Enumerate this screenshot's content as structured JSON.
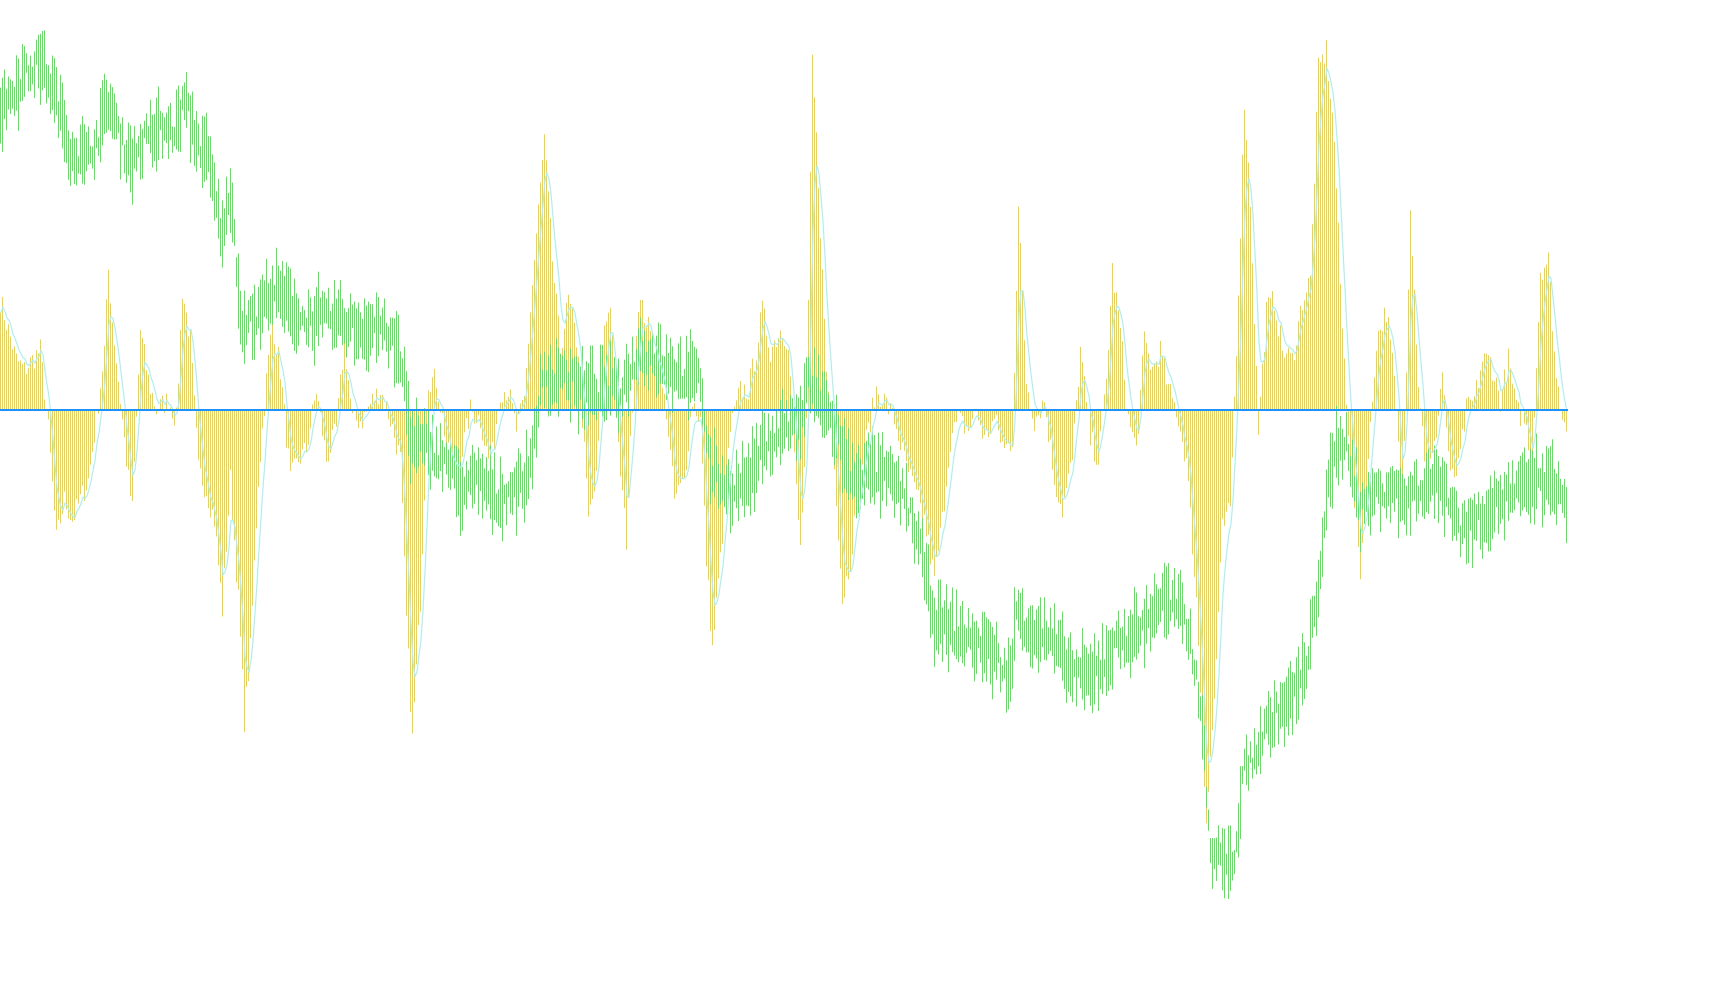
{
  "chart_data": {
    "type": "bar",
    "title": "",
    "xlabel": "",
    "ylabel": "",
    "grid": false,
    "legend": "none",
    "bar_count": 784,
    "colors": {
      "background": "#ffffff",
      "histogram": "#ffd700",
      "signal_line": "#afeeee",
      "price_bars": "#33ff33",
      "zero_line": "#1e90ff"
    },
    "histogram": {
      "ylim": [
        -4.9,
        4.1
      ],
      "zero_level": 0,
      "points": [
        [
          0,
          1.1
        ],
        [
          4,
          0.8
        ],
        [
          8,
          0.5
        ],
        [
          12,
          0.4
        ],
        [
          16,
          0.5
        ],
        [
          20,
          0.6
        ],
        [
          24,
          -0.2
        ],
        [
          28,
          -1.3
        ],
        [
          32,
          -0.9
        ],
        [
          36,
          -1.1
        ],
        [
          40,
          -0.9
        ],
        [
          44,
          -0.7
        ],
        [
          48,
          -0.1
        ],
        [
          52,
          0.6
        ],
        [
          54,
          1.4
        ],
        [
          56,
          0.9
        ],
        [
          60,
          0.1
        ],
        [
          64,
          -0.7
        ],
        [
          66,
          -1.0
        ],
        [
          70,
          0.8
        ],
        [
          74,
          0.3
        ],
        [
          78,
          0
        ],
        [
          84,
          0.1
        ],
        [
          88,
          -0.1
        ],
        [
          91,
          1.2
        ],
        [
          95,
          0.7
        ],
        [
          99,
          -0.6
        ],
        [
          103,
          -0.8
        ],
        [
          107,
          -1.1
        ],
        [
          111,
          -2.0
        ],
        [
          115,
          -0.7
        ],
        [
          119,
          -1.9
        ],
        [
          122,
          -3.1
        ],
        [
          125,
          -2.4
        ],
        [
          129,
          -0.7
        ],
        [
          133,
          0.3
        ],
        [
          136,
          0.9
        ],
        [
          140,
          0.4
        ],
        [
          145,
          -0.7
        ],
        [
          149,
          -0.5
        ],
        [
          153,
          -0.4
        ],
        [
          158,
          0.2
        ],
        [
          163,
          -0.5
        ],
        [
          168,
          -0.2
        ],
        [
          172,
          0.7
        ],
        [
          176,
          -0.1
        ],
        [
          181,
          -0.1
        ],
        [
          186,
          0.1
        ],
        [
          190,
          0.2
        ],
        [
          195,
          -0.1
        ],
        [
          200,
          -0.5
        ],
        [
          203,
          -2.1
        ],
        [
          206,
          -3.3
        ],
        [
          210,
          -1.9
        ],
        [
          214,
          0.3
        ],
        [
          218,
          0.3
        ],
        [
          222,
          -0.2
        ],
        [
          226,
          -0.7
        ],
        [
          230,
          -0.5
        ],
        [
          235,
          0
        ],
        [
          240,
          -0.1
        ],
        [
          245,
          -0.6
        ],
        [
          250,
          0.2
        ],
        [
          254,
          0.2
        ],
        [
          258,
          -0.2
        ],
        [
          262,
          0.1
        ],
        [
          265,
          1.0
        ],
        [
          269,
          2.0
        ],
        [
          272,
          2.7
        ],
        [
          276,
          1.5
        ],
        [
          280,
          0.6
        ],
        [
          284,
          1.1
        ],
        [
          289,
          0.6
        ],
        [
          294,
          -1.1
        ],
        [
          298,
          -0.7
        ],
        [
          302,
          0.8
        ],
        [
          305,
          1.1
        ],
        [
          309,
          -0.4
        ],
        [
          313,
          -1.3
        ],
        [
          316,
          0.1
        ],
        [
          319,
          1.1
        ],
        [
          323,
          0.9
        ],
        [
          328,
          0.5
        ],
        [
          333,
          0
        ],
        [
          337,
          -0.9
        ],
        [
          342,
          -0.7
        ],
        [
          346,
          0.1
        ],
        [
          350,
          -0.1
        ],
        [
          353,
          -1.5
        ],
        [
          356,
          -2.4
        ],
        [
          360,
          -1.5
        ],
        [
          365,
          -0.2
        ],
        [
          370,
          0.2
        ],
        [
          374,
          0.2
        ],
        [
          378,
          0.6
        ],
        [
          381,
          1.0
        ],
        [
          385,
          0.6
        ],
        [
          390,
          0.8
        ],
        [
          394,
          0.7
        ],
        [
          397,
          -0.5
        ],
        [
          400,
          -1.4
        ],
        [
          403,
          -0.2
        ],
        [
          406,
          3.5
        ],
        [
          409,
          2.3
        ],
        [
          413,
          0.4
        ],
        [
          417,
          -0.5
        ],
        [
          421,
          -1.9
        ],
        [
          425,
          -1.5
        ],
        [
          430,
          -0.6
        ],
        [
          434,
          -0.2
        ],
        [
          438,
          0.2
        ],
        [
          442,
          0.1
        ],
        [
          447,
          -0.1
        ],
        [
          452,
          -0.5
        ],
        [
          457,
          -0.8
        ],
        [
          462,
          -1.1
        ],
        [
          467,
          -1.7
        ],
        [
          471,
          -1.1
        ],
        [
          475,
          -0.3
        ],
        [
          479,
          -0.1
        ],
        [
          484,
          -0.2
        ],
        [
          488,
          0
        ],
        [
          492,
          -0.3
        ],
        [
          497,
          -0.1
        ],
        [
          502,
          -0.4
        ],
        [
          506,
          -0.3
        ],
        [
          509,
          2.0
        ],
        [
          513,
          0.3
        ],
        [
          517,
          -0.1
        ],
        [
          522,
          0.1
        ],
        [
          527,
          -0.7
        ],
        [
          531,
          -1.0
        ],
        [
          536,
          -0.5
        ],
        [
          540,
          0.6
        ],
        [
          545,
          -0.3
        ],
        [
          549,
          -0.5
        ],
        [
          553,
          0.3
        ],
        [
          556,
          1.4
        ],
        [
          560,
          0.8
        ],
        [
          564,
          -0.1
        ],
        [
          568,
          -0.4
        ],
        [
          572,
          0.7
        ],
        [
          576,
          0.4
        ],
        [
          580,
          0.6
        ],
        [
          584,
          0.2
        ],
        [
          588,
          0
        ],
        [
          593,
          -0.5
        ],
        [
          598,
          -1.9
        ],
        [
          603,
          -4.1
        ],
        [
          607,
          -2.9
        ],
        [
          611,
          -1.2
        ],
        [
          615,
          -1.0
        ],
        [
          619,
          1.2
        ],
        [
          622,
          3.1
        ],
        [
          625,
          2.1
        ],
        [
          629,
          -0.2
        ],
        [
          633,
          1.0
        ],
        [
          637,
          1.1
        ],
        [
          641,
          0.6
        ],
        [
          646,
          0.5
        ],
        [
          651,
          1.1
        ],
        [
          655,
          1.3
        ],
        [
          659,
          3.4
        ],
        [
          663,
          3.6
        ],
        [
          667,
          2.7
        ],
        [
          671,
          0.8
        ],
        [
          675,
          -0.5
        ],
        [
          680,
          -1.6
        ],
        [
          684,
          -0.5
        ],
        [
          688,
          0.7
        ],
        [
          693,
          1.0
        ],
        [
          697,
          0.3
        ],
        [
          701,
          -1.1
        ],
        [
          705,
          2.1
        ],
        [
          709,
          0.3
        ],
        [
          713,
          -0.7
        ],
        [
          717,
          -0.4
        ],
        [
          721,
          0.4
        ],
        [
          725,
          -0.7
        ],
        [
          729,
          -0.6
        ],
        [
          733,
          0
        ],
        [
          737,
          0.1
        ],
        [
          741,
          0.5
        ],
        [
          745,
          0.5
        ],
        [
          750,
          0.1
        ],
        [
          754,
          0.5
        ],
        [
          758,
          0
        ],
        [
          762,
          -0.1
        ],
        [
          766,
          -0.5
        ],
        [
          770,
          1.4
        ],
        [
          774,
          1.5
        ],
        [
          778,
          0.3
        ],
        [
          782,
          -0.1
        ]
      ]
    },
    "price": {
      "ylim": [
        0,
        9
      ],
      "points": [
        [
          0,
          7.9
        ],
        [
          10,
          8.2
        ],
        [
          20,
          8.4
        ],
        [
          28,
          8.0
        ],
        [
          35,
          7.5
        ],
        [
          43,
          7.4
        ],
        [
          50,
          7.7
        ],
        [
          54,
          8.0
        ],
        [
          60,
          7.6
        ],
        [
          66,
          7.4
        ],
        [
          72,
          7.6
        ],
        [
          80,
          7.7
        ],
        [
          88,
          7.7
        ],
        [
          92,
          8.0
        ],
        [
          98,
          7.6
        ],
        [
          104,
          7.4
        ],
        [
          110,
          6.7
        ],
        [
          116,
          7.0
        ],
        [
          120,
          5.8
        ],
        [
          128,
          5.8
        ],
        [
          135,
          6.1
        ],
        [
          142,
          6.0
        ],
        [
          150,
          5.8
        ],
        [
          160,
          5.8
        ],
        [
          170,
          5.8
        ],
        [
          180,
          5.7
        ],
        [
          190,
          5.75
        ],
        [
          198,
          5.5
        ],
        [
          202,
          5.2
        ],
        [
          205,
          4.6
        ],
        [
          215,
          4.5
        ],
        [
          223,
          4.4
        ],
        [
          230,
          4.1
        ],
        [
          240,
          4.2
        ],
        [
          248,
          4.0
        ],
        [
          255,
          4.1
        ],
        [
          263,
          4.2
        ],
        [
          266,
          4.5
        ],
        [
          270,
          5.1
        ],
        [
          280,
          5.3
        ],
        [
          290,
          5.1
        ],
        [
          300,
          5.1
        ],
        [
          310,
          5.1
        ],
        [
          320,
          5.5
        ],
        [
          330,
          5.4
        ],
        [
          340,
          5.25
        ],
        [
          350,
          5.2
        ],
        [
          355,
          4.3
        ],
        [
          365,
          4.1
        ],
        [
          374,
          4.2
        ],
        [
          381,
          4.5
        ],
        [
          390,
          4.7
        ],
        [
          400,
          4.8
        ],
        [
          404,
          5.2
        ],
        [
          410,
          5.0
        ],
        [
          418,
          4.7
        ],
        [
          425,
          4.2
        ],
        [
          435,
          4.3
        ],
        [
          445,
          4.2
        ],
        [
          453,
          4.0
        ],
        [
          460,
          3.5
        ],
        [
          467,
          2.8
        ],
        [
          475,
          2.7
        ],
        [
          485,
          2.6
        ],
        [
          495,
          2.5
        ],
        [
          505,
          2.2
        ],
        [
          508,
          2.9
        ],
        [
          515,
          2.7
        ],
        [
          525,
          2.6
        ],
        [
          535,
          2.3
        ],
        [
          545,
          2.2
        ],
        [
          552,
          2.4
        ],
        [
          560,
          2.6
        ],
        [
          570,
          2.7
        ],
        [
          580,
          3.0
        ],
        [
          590,
          2.9
        ],
        [
          595,
          2.6
        ],
        [
          600,
          2.0
        ],
        [
          605,
          0.5
        ],
        [
          612,
          0.4
        ],
        [
          616,
          0.3
        ],
        [
          622,
          1.3
        ],
        [
          628,
          1.5
        ],
        [
          635,
          1.8
        ],
        [
          645,
          2.0
        ],
        [
          653,
          2.3
        ],
        [
          658,
          3.0
        ],
        [
          663,
          4.0
        ],
        [
          668,
          4.5
        ],
        [
          673,
          4.6
        ],
        [
          680,
          3.9
        ],
        [
          690,
          4.1
        ],
        [
          695,
          4.1
        ],
        [
          702,
          4.0
        ],
        [
          709,
          4.1
        ],
        [
          716,
          4.2
        ],
        [
          723,
          4.1
        ],
        [
          730,
          3.7
        ],
        [
          738,
          3.8
        ],
        [
          750,
          4.0
        ],
        [
          760,
          4.1
        ],
        [
          770,
          4.2
        ],
        [
          780,
          4.1
        ],
        [
          784,
          3.7
        ]
      ]
    }
  }
}
